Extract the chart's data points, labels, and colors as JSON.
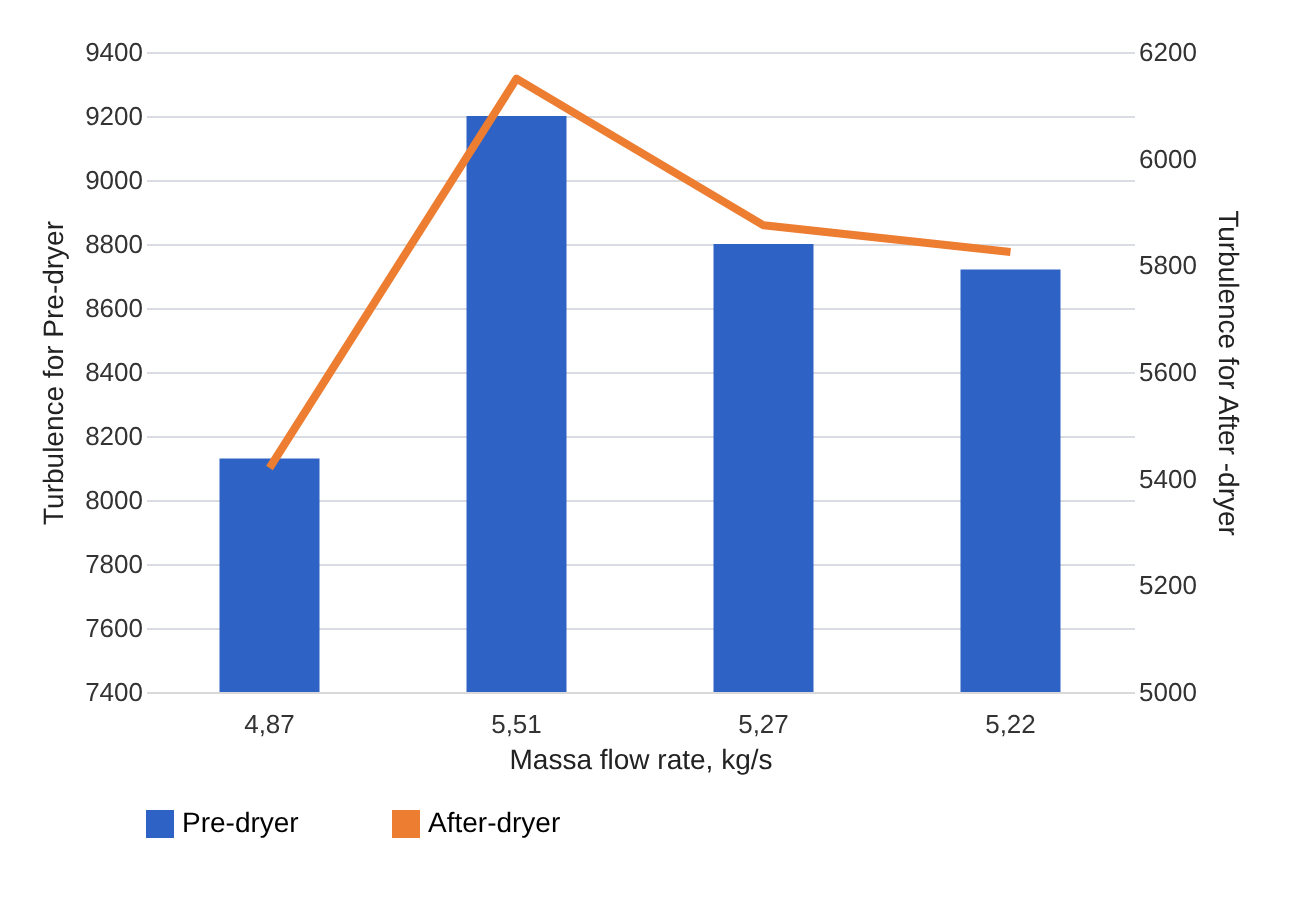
{
  "chart_data": {
    "type": "bar",
    "xlabel": "Massa flow rate, kg/s",
    "ylabel": "Turbulence for Pre-dryer",
    "y2label": "Turbulence for After -dryer",
    "categories": [
      "4,87",
      "5,51",
      "5,27",
      "5,22"
    ],
    "series": [
      {
        "name": "Pre-dryer",
        "color": "#2e62c4",
        "values": [
          8130,
          9200,
          8800,
          8720
        ]
      },
      {
        "name": "After-dryer",
        "type": "line",
        "axis": "y2",
        "color": "#ed7d31",
        "values": [
          5420,
          6150,
          5875,
          5825
        ]
      }
    ],
    "ylim": [
      7400,
      9400
    ],
    "yticks": [
      7400,
      7600,
      7800,
      8000,
      8200,
      8400,
      8600,
      8800,
      9000,
      9200,
      9400
    ],
    "y2lim": [
      5000,
      6200
    ],
    "y2ticks": [
      5000,
      5200,
      5400,
      5600,
      5800,
      6000,
      6200
    ],
    "grid": "y",
    "legend": "bottom",
    "marker": "none"
  }
}
